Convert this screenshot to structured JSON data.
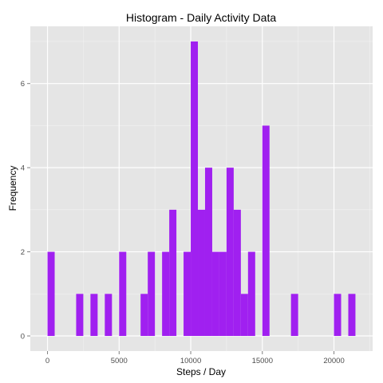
{
  "chart_data": {
    "type": "bar",
    "title": "Histogram - Daily Activity Data",
    "xlabel": "Steps / Day",
    "ylabel": "Frequency",
    "bin_width": 500,
    "bins": [
      {
        "start": 0,
        "end": 500,
        "count": 2
      },
      {
        "start": 2000,
        "end": 2500,
        "count": 1
      },
      {
        "start": 3000,
        "end": 3500,
        "count": 1
      },
      {
        "start": 4000,
        "end": 4500,
        "count": 1
      },
      {
        "start": 5000,
        "end": 5500,
        "count": 2
      },
      {
        "start": 6500,
        "end": 7000,
        "count": 1
      },
      {
        "start": 7000,
        "end": 7500,
        "count": 2
      },
      {
        "start": 8000,
        "end": 8500,
        "count": 2
      },
      {
        "start": 8500,
        "end": 9000,
        "count": 3
      },
      {
        "start": 9500,
        "end": 10000,
        "count": 2
      },
      {
        "start": 10000,
        "end": 10500,
        "count": 7
      },
      {
        "start": 10500,
        "end": 11000,
        "count": 3
      },
      {
        "start": 11000,
        "end": 11500,
        "count": 4
      },
      {
        "start": 11500,
        "end": 12000,
        "count": 2
      },
      {
        "start": 12000,
        "end": 12500,
        "count": 2
      },
      {
        "start": 12500,
        "end": 13000,
        "count": 4
      },
      {
        "start": 13000,
        "end": 13500,
        "count": 3
      },
      {
        "start": 13500,
        "end": 14000,
        "count": 1
      },
      {
        "start": 14000,
        "end": 14500,
        "count": 2
      },
      {
        "start": 15000,
        "end": 15500,
        "count": 5
      },
      {
        "start": 17000,
        "end": 17500,
        "count": 1
      },
      {
        "start": 20000,
        "end": 20500,
        "count": 1
      },
      {
        "start": 21000,
        "end": 21500,
        "count": 1
      }
    ],
    "xlim": [
      -1200,
      22700
    ],
    "ylim": [
      -0.36,
      7.36
    ],
    "xticks": [
      0,
      5000,
      10000,
      15000,
      20000
    ],
    "xtick_labels": [
      "0",
      "5000",
      "10000",
      "15000",
      "20000"
    ],
    "yticks": [
      0,
      2,
      4,
      6
    ],
    "ytick_labels": [
      "0",
      "2",
      "4",
      "6"
    ],
    "grid": true,
    "bar_color": "#A020F0",
    "panel_color": "#E5E5E5",
    "grid_color": "#FFFFFF"
  }
}
